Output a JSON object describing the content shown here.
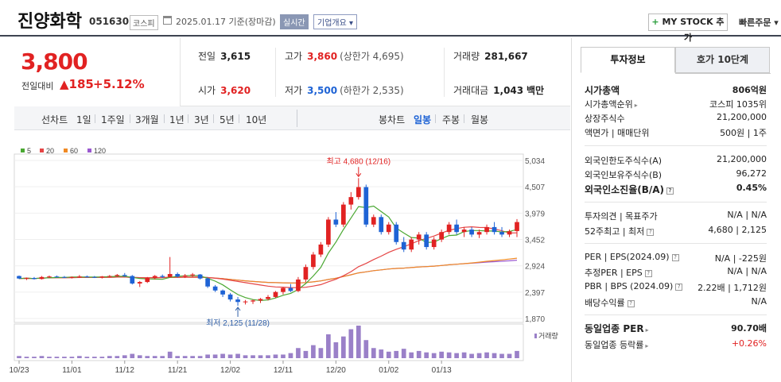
{
  "header": {
    "company_name": "진양화학",
    "code": "051630",
    "market": "코스피",
    "date": "2025.01.17  기준(장마감)",
    "realtime": "실시간",
    "overview": "기업개요 ▾",
    "mystock": "MY STOCK 추가",
    "mystock_plus": "+",
    "quick_order": "빠른주문 ▾"
  },
  "price": {
    "current": "3,800",
    "change_label": "전일대비",
    "change_value": "▲185",
    "change_pct": "+5.12%"
  },
  "summary": {
    "prev_label": "전일",
    "prev_value": "3,615",
    "high_label": "고가",
    "high_value": "3,860",
    "upper_limit": "(상한가 4,695)",
    "volume_label": "거래량",
    "volume_value": "281,667",
    "open_label": "시가",
    "open_value": "3,620",
    "low_label": "저가",
    "low_value": "3,500",
    "lower_limit": "(하한가 2,535)",
    "amount_label": "거래대금",
    "amount_value": "1,043",
    "amount_unit": "백만"
  },
  "periods": {
    "line_chart": "선차트",
    "line_items": [
      "1일",
      "1주일",
      "3개월",
      "1년",
      "3년",
      "5년",
      "10년"
    ],
    "candle_chart": "봉차트",
    "candle_items": [
      "일봉",
      "주봉",
      "월봉"
    ],
    "active_candle": "일봉"
  },
  "chart_data": {
    "type": "candlestick",
    "legend": [
      {
        "name": "5",
        "color": "#4aa832"
      },
      {
        "name": "20",
        "color": "#e54545"
      },
      {
        "name": "60",
        "color": "#f08a24"
      },
      {
        "name": "120",
        "color": "#9b59d0"
      }
    ],
    "y_ticks": [
      "5,034",
      "4,507",
      "3,979",
      "3,452",
      "2,924",
      "2,397",
      "1,870"
    ],
    "y_tick_values": [
      5034,
      4507,
      3979,
      3452,
      2924,
      2397,
      1870
    ],
    "ylim": [
      1870,
      5034
    ],
    "x_ticks": [
      "10/23",
      "11/01",
      "11/12",
      "11/21",
      "12/02",
      "12/11",
      "12/20",
      "01/02",
      "01/13"
    ],
    "x_tick_index": [
      0,
      7,
      14,
      21,
      28,
      35,
      42,
      49,
      56
    ],
    "volume_label": "거래량",
    "max_annotation": "최고 4,680 (12/16)",
    "min_annotation": "최저 2,125 (11/28)",
    "candles": [
      [
        2720,
        2730,
        2660,
        2670
      ],
      [
        2670,
        2690,
        2640,
        2680
      ],
      [
        2680,
        2700,
        2650,
        2660
      ],
      [
        2660,
        2720,
        2650,
        2700
      ],
      [
        2700,
        2730,
        2680,
        2710
      ],
      [
        2710,
        2730,
        2690,
        2700
      ],
      [
        2700,
        2720,
        2680,
        2690
      ],
      [
        2690,
        2710,
        2670,
        2700
      ],
      [
        2700,
        2740,
        2680,
        2710
      ],
      [
        2710,
        2730,
        2690,
        2700
      ],
      [
        2700,
        2720,
        2680,
        2690
      ],
      [
        2690,
        2720,
        2670,
        2710
      ],
      [
        2710,
        2740,
        2690,
        2720
      ],
      [
        2720,
        2760,
        2700,
        2740
      ],
      [
        2740,
        2780,
        2700,
        2720
      ],
      [
        2720,
        2740,
        2550,
        2570
      ],
      [
        2570,
        2620,
        2500,
        2600
      ],
      [
        2600,
        2700,
        2580,
        2680
      ],
      [
        2680,
        2740,
        2650,
        2720
      ],
      [
        2720,
        2750,
        2680,
        2700
      ],
      [
        2700,
        3100,
        2690,
        2760
      ],
      [
        2760,
        2790,
        2690,
        2710
      ],
      [
        2710,
        2760,
        2680,
        2730
      ],
      [
        2730,
        2780,
        2700,
        2750
      ],
      [
        2750,
        2760,
        2650,
        2670
      ],
      [
        2670,
        2690,
        2480,
        2510
      ],
      [
        2510,
        2540,
        2400,
        2430
      ],
      [
        2430,
        2450,
        2300,
        2350
      ],
      [
        2350,
        2380,
        2210,
        2250
      ],
      [
        2250,
        2300,
        2125,
        2200
      ],
      [
        2200,
        2240,
        2150,
        2210
      ],
      [
        2210,
        2250,
        2160,
        2230
      ],
      [
        2230,
        2280,
        2180,
        2260
      ],
      [
        2260,
        2340,
        2230,
        2300
      ],
      [
        2300,
        2420,
        2280,
        2400
      ],
      [
        2400,
        2500,
        2350,
        2480
      ],
      [
        2480,
        2560,
        2400,
        2420
      ],
      [
        2420,
        2700,
        2400,
        2650
      ],
      [
        2650,
        2950,
        2600,
        2900
      ],
      [
        2900,
        3200,
        2850,
        3150
      ],
      [
        3150,
        3400,
        3100,
        3350
      ],
      [
        3350,
        3900,
        3300,
        3850
      ],
      [
        3850,
        4000,
        3700,
        3750
      ],
      [
        3750,
        4200,
        3700,
        4150
      ],
      [
        4150,
        4400,
        4050,
        4300
      ],
      [
        4300,
        4680,
        4250,
        4500
      ],
      [
        4500,
        4550,
        3700,
        3750
      ],
      [
        3750,
        3950,
        3700,
        3900
      ],
      [
        3900,
        3950,
        3550,
        3600
      ],
      [
        3600,
        3800,
        3550,
        3750
      ],
      [
        3750,
        3800,
        3350,
        3400
      ],
      [
        3400,
        3500,
        3200,
        3250
      ],
      [
        3250,
        3500,
        3200,
        3450
      ],
      [
        3450,
        3600,
        3350,
        3550
      ],
      [
        3550,
        3600,
        3250,
        3300
      ],
      [
        3300,
        3500,
        3250,
        3450
      ],
      [
        3450,
        3650,
        3400,
        3600
      ],
      [
        3600,
        3800,
        3550,
        3750
      ],
      [
        3750,
        3850,
        3550,
        3600
      ],
      [
        3600,
        3700,
        3500,
        3650
      ],
      [
        3650,
        3700,
        3500,
        3550
      ],
      [
        3550,
        3650,
        3480,
        3600
      ],
      [
        3600,
        3750,
        3550,
        3700
      ],
      [
        3700,
        3800,
        3550,
        3600
      ],
      [
        3600,
        3700,
        3500,
        3550
      ],
      [
        3550,
        3650,
        3500,
        3615
      ],
      [
        3620,
        3860,
        3500,
        3800
      ]
    ],
    "volume": [
      3,
      2,
      2,
      3,
      2,
      2,
      2,
      2,
      3,
      2,
      2,
      2,
      3,
      3,
      4,
      6,
      4,
      3,
      3,
      3,
      9,
      3,
      3,
      3,
      3,
      5,
      5,
      6,
      5,
      6,
      4,
      4,
      4,
      4,
      5,
      5,
      7,
      14,
      10,
      18,
      14,
      33,
      22,
      30,
      40,
      45,
      25,
      14,
      12,
      9,
      10,
      13,
      8,
      10,
      8,
      7,
      9,
      8,
      7,
      8,
      6,
      7,
      8,
      7,
      6,
      6,
      10
    ]
  },
  "side": {
    "tab_invest": "투자정보",
    "tab_quote": "호가 10단계",
    "rows1": [
      {
        "label": "시가총액",
        "value": "806억원"
      },
      {
        "label": "시가총액순위",
        "value": "코스피 1035위"
      },
      {
        "label": "상장주식수",
        "value": "21,200,000"
      },
      {
        "label": "액면가 | 매매단위",
        "value": "500원 | 1주"
      }
    ],
    "rows2": [
      {
        "label": "외국인한도주식수(A)",
        "value": "21,200,000"
      },
      {
        "label": "외국인보유주식수(B)",
        "value": "96,272"
      },
      {
        "label": "외국인소진율(B/A)",
        "value": "0.45%"
      }
    ],
    "rows3": [
      {
        "label": "투자의견 | 목표주가",
        "value": "N/A | N/A"
      },
      {
        "label": "52주최고 | 최저",
        "value": "4,680 | 2,125"
      }
    ],
    "rows4": [
      {
        "label": "PER | EPS(2024.09)",
        "value": "N/A | -225원"
      },
      {
        "label": "추정PER | EPS",
        "value": "N/A | N/A"
      },
      {
        "label": "PBR | BPS (2024.09)",
        "value": "2.22배 | 1,712원"
      },
      {
        "label": "배당수익률",
        "value": "N/A"
      }
    ],
    "rows5": [
      {
        "label": "동일업종 PER",
        "value": "90.70배"
      },
      {
        "label": "동일업종 등락률",
        "value": "+0.26%"
      }
    ]
  },
  "colors": {
    "up": "#e12222",
    "down": "#1e63d5",
    "volume": "#9a80c8",
    "header_rule": "#3e4451"
  }
}
